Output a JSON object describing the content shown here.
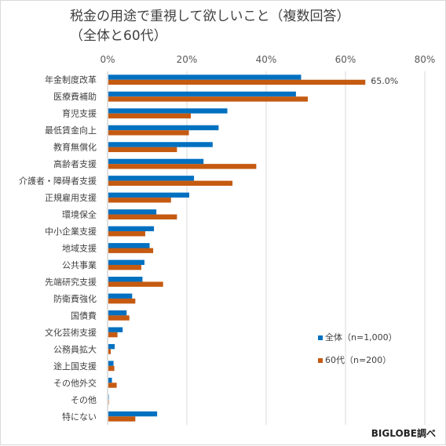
{
  "chart_data": {
    "type": "bar",
    "orientation": "horizontal",
    "title_line1": "税金の用途で重視して欲しいこと（複数回答）",
    "title_line2": "（全体と60代）",
    "categories": [
      "年金制度改革",
      "医療費補助",
      "育児支援",
      "最低賃金向上",
      "教育無償化",
      "高齢者支援",
      "介護者・障碍者支援",
      "正規雇用支援",
      "環境保全",
      "中小企業支援",
      "地域支援",
      "公共事業",
      "先端研究支援",
      "防衛費強化",
      "国債費",
      "文化芸術支援",
      "公務員拡大",
      "途上国支援",
      "その他外交",
      "その他",
      "特にない"
    ],
    "series": [
      {
        "name": "全体（n=1,000）",
        "color": "#0070c0",
        "values": [
          48.8,
          47.5,
          30.2,
          28.0,
          26.5,
          24.2,
          21.8,
          20.6,
          12.3,
          11.7,
          10.6,
          9.3,
          8.8,
          6.2,
          4.8,
          3.8,
          1.8,
          1.5,
          1.1,
          0.3,
          12.5
        ]
      },
      {
        "name": "60代（n=200）",
        "color": "#c55a11",
        "values": [
          65.0,
          50.5,
          21.0,
          20.5,
          17.5,
          37.5,
          31.5,
          16.0,
          17.5,
          9.5,
          11.5,
          8.5,
          14.0,
          7.0,
          5.5,
          2.5,
          0.8,
          1.7,
          2.3,
          0.3,
          7.0
        ]
      }
    ],
    "data_labels": [
      {
        "series": 1,
        "category": "年金制度改革",
        "text": "65.0%"
      }
    ],
    "xlim": [
      0,
      80
    ],
    "xticks": [
      "0%",
      "20%",
      "40%",
      "60%",
      "80%"
    ],
    "grid": true,
    "legend_position": "right"
  },
  "footer": {
    "source": "BIGLOBE調べ"
  }
}
